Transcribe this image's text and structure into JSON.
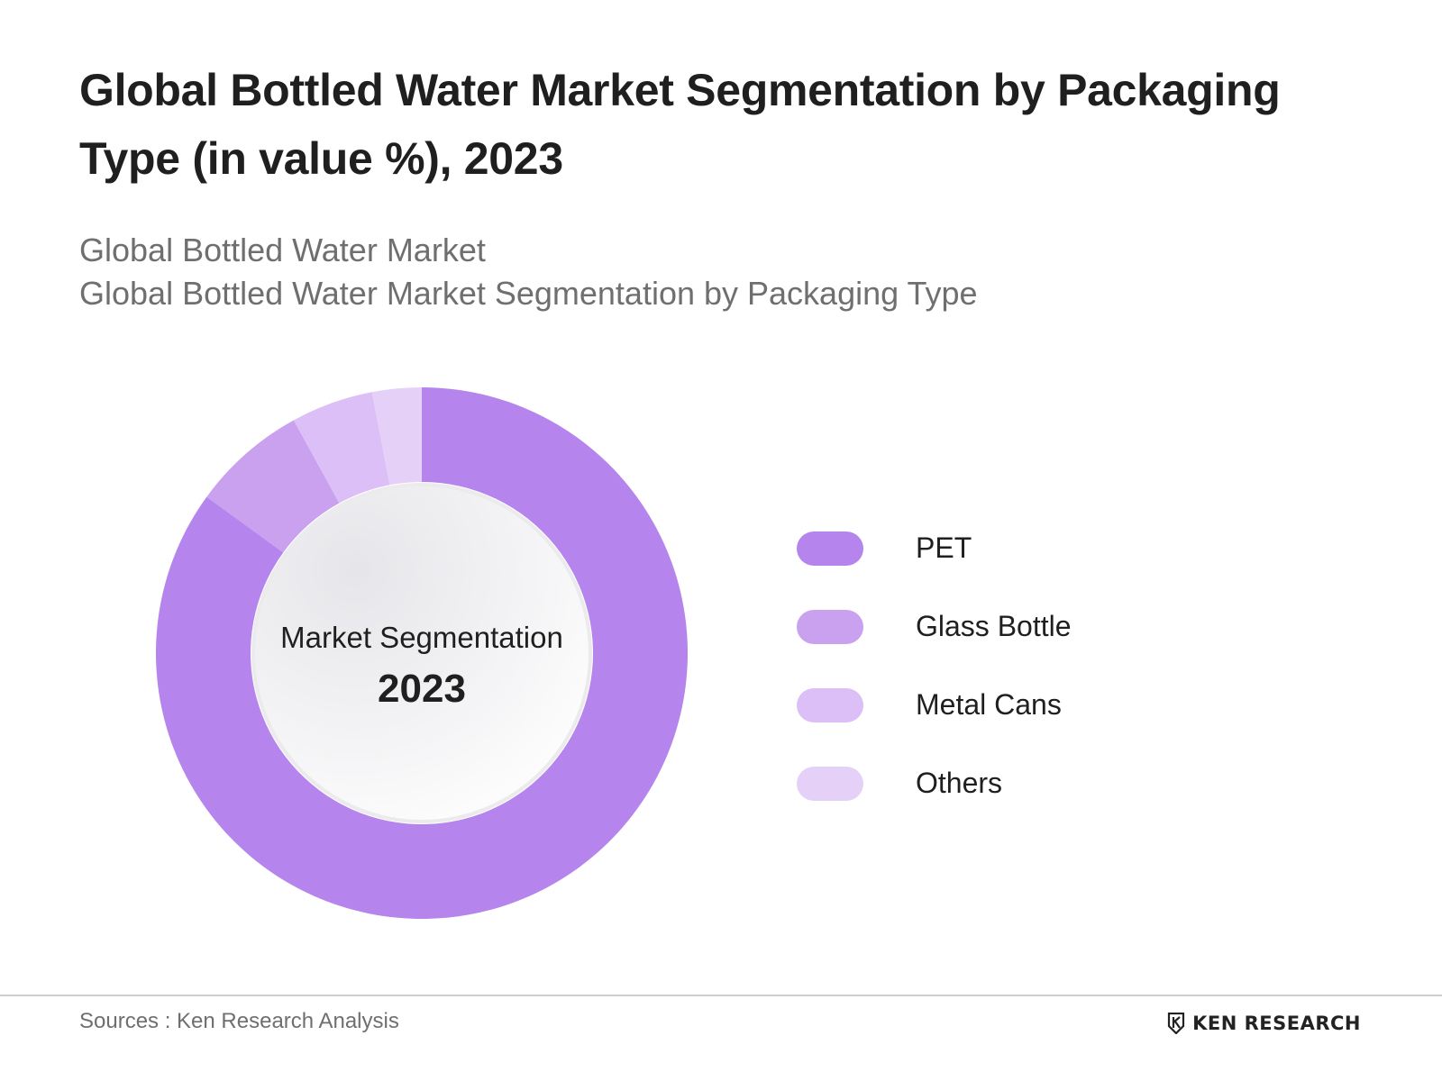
{
  "title": "Global Bottled Water Market Segmentation by Packaging Type (in value %), 2023",
  "subtitle_lines": [
    "Global Bottled Water Market",
    "Global Bottled Water Market Segmentation by Packaging Type"
  ],
  "center_label": {
    "line1": "Market Segmentation",
    "line2": "2023"
  },
  "footer": {
    "source": "Sources : Ken Research Analysis",
    "brand": "KEN RESEARCH",
    "brand_icon": "ken-research-logo-icon"
  },
  "chart_data": {
    "type": "pie",
    "style": "donut",
    "categories": [
      "PET",
      "Glass Bottle",
      "Metal Cans",
      "Others"
    ],
    "values": [
      85,
      7,
      5,
      3
    ],
    "unit": "%",
    "colors": [
      "#b584ec",
      "#c9a1ef",
      "#dbbff6",
      "#e5d1f8"
    ],
    "legend_position": "right"
  }
}
